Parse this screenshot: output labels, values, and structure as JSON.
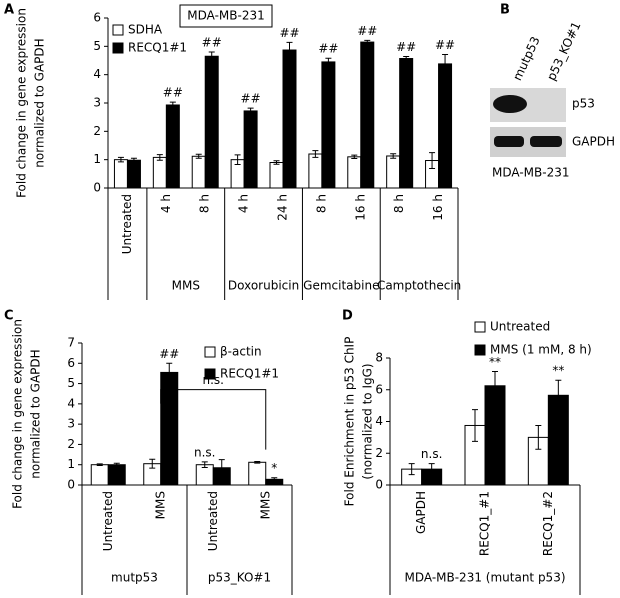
{
  "panel_labels": [
    "A",
    "B",
    "C",
    "D"
  ],
  "blot": {
    "lanes": [
      "mutp53",
      "p53_KO#1"
    ],
    "bands": [
      "p53",
      "GAPDH"
    ],
    "cell_line": "MDA-MB-231"
  },
  "chart_data": [
    {
      "type": "bar",
      "title": "MDA-MB-231",
      "ylabel": [
        "Fold change in gene expression",
        "normalized to GAPDH"
      ],
      "categories": [
        "Untreated",
        "4 h",
        "8 h",
        "4 h",
        "24 h",
        "8 h",
        "16 h",
        "8 h",
        "16 h"
      ],
      "category_groups": [
        null,
        "MMS",
        "MMS",
        "Doxorubicin",
        "Doxorubicin",
        "Gemcitabine",
        "Gemcitabine",
        "Camptothecin",
        "Camptothecin"
      ],
      "series": [
        {
          "name": "SDHA",
          "color": "#ffffff",
          "values": [
            1.0,
            1.08,
            1.12,
            1.0,
            0.9,
            1.2,
            1.1,
            1.13,
            0.97
          ],
          "errors": [
            0.08,
            0.1,
            0.07,
            0.17,
            0.06,
            0.12,
            0.06,
            0.08,
            0.28
          ]
        },
        {
          "name": "RECQ1#1",
          "color": "#000000",
          "values": [
            0.98,
            2.93,
            4.65,
            2.72,
            4.87,
            4.45,
            5.15,
            4.57,
            4.38
          ],
          "errors": [
            0.07,
            0.1,
            0.15,
            0.1,
            0.27,
            0.13,
            0.06,
            0.07,
            0.33
          ],
          "annotations": [
            null,
            "##",
            "##",
            "##",
            "##",
            "##",
            "##",
            "##",
            "##"
          ]
        }
      ],
      "ylim": [
        0,
        6
      ],
      "yticks": [
        0,
        1,
        2,
        3,
        4,
        5,
        6
      ]
    },
    {
      "type": "bar",
      "ylabel": [
        "Fold change in gene expression",
        "normalized to GAPDH"
      ],
      "categories": [
        "Untreated",
        "MMS",
        "Untreated",
        "MMS"
      ],
      "category_groups": [
        "mutp53",
        "mutp53",
        "p53_KO#1",
        "p53_KO#1"
      ],
      "series": [
        {
          "name": "β-actin",
          "color": "#ffffff",
          "values": [
            1.0,
            1.05,
            1.0,
            1.12
          ],
          "errors": [
            0.04,
            0.22,
            0.14,
            0.04
          ],
          "annotations": [
            null,
            null,
            "n.s.",
            null
          ]
        },
        {
          "name": "RECQ1#1",
          "color": "#000000",
          "values": [
            1.0,
            5.55,
            0.85,
            0.28
          ],
          "errors": [
            0.07,
            0.45,
            0.4,
            0.08
          ],
          "annotations": [
            null,
            "##",
            null,
            "*"
          ]
        }
      ],
      "bracket_label": "n.s.",
      "ylim": [
        0,
        7
      ],
      "yticks": [
        0,
        1,
        2,
        3,
        4,
        5,
        6,
        7
      ]
    },
    {
      "type": "bar",
      "ylabel": [
        "Fold Enrichment in p53 ChIP",
        "(normalized to IgG)"
      ],
      "categories": [
        "GAPDH",
        "RECQ1_#1",
        "RECQ1_#2"
      ],
      "category_groups": [
        "MDA-MB-231 (mutant p53)",
        "MDA-MB-231 (mutant p53)",
        "MDA-MB-231 (mutant p53)"
      ],
      "series": [
        {
          "name": "Untreated",
          "color": "#ffffff",
          "values": [
            1.0,
            3.75,
            3.0
          ],
          "errors": [
            0.35,
            1.0,
            0.75
          ]
        },
        {
          "name": "MMS (1 mM, 8 h)",
          "color": "#000000",
          "values": [
            1.0,
            6.25,
            5.65
          ],
          "errors": [
            0.35,
            0.9,
            0.95
          ],
          "annotations": [
            "n.s.",
            "**",
            "**"
          ]
        }
      ],
      "ylim": [
        0,
        8
      ],
      "yticks": [
        0,
        2,
        4,
        6,
        8
      ]
    }
  ]
}
